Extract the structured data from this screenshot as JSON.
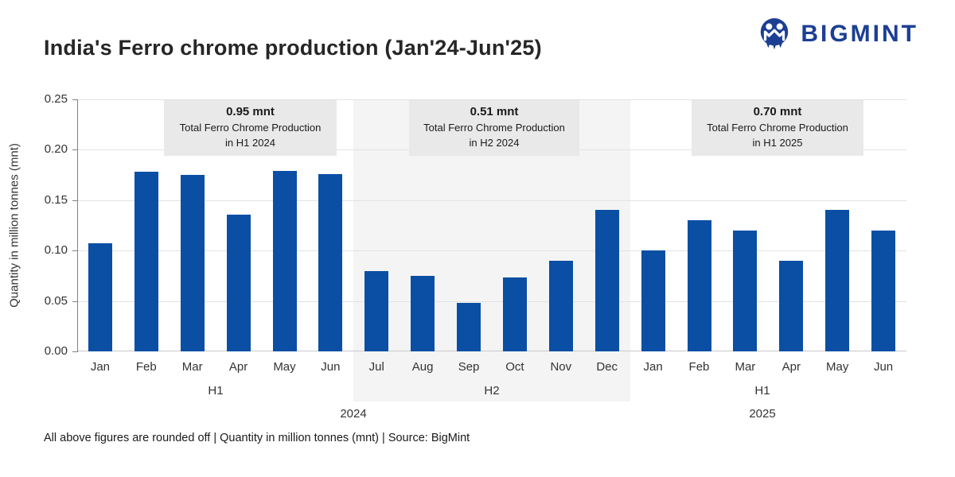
{
  "header": {
    "title": "India's Ferro chrome production (Jan'24-Jun'25)",
    "brand": "BIGMINT"
  },
  "chart_data": {
    "type": "bar",
    "title": "India's Ferro chrome production (Jan'24-Jun'25)",
    "ylabel": "Quantity in million tonnes (mnt)",
    "ylim": [
      0,
      0.25
    ],
    "ytick_step": 0.05,
    "yticks": [
      "0.00",
      "0.05",
      "0.10",
      "0.15",
      "0.20",
      "0.25"
    ],
    "grid": "horizontal",
    "bar_color": "#0a4fa4",
    "shaded_group_index": 1,
    "categories": [
      "Jan",
      "Feb",
      "Mar",
      "Apr",
      "May",
      "Jun",
      "Jul",
      "Aug",
      "Sep",
      "Oct",
      "Nov",
      "Dec",
      "Jan",
      "Feb",
      "Mar",
      "Apr",
      "May",
      "Jun"
    ],
    "values": [
      0.107,
      0.178,
      0.175,
      0.136,
      0.179,
      0.176,
      0.08,
      0.075,
      0.048,
      0.073,
      0.09,
      0.14,
      0.1,
      0.13,
      0.12,
      0.09,
      0.14,
      0.12
    ],
    "half_labels": [
      "H1",
      "H2",
      "H1"
    ],
    "year_labels": [
      "2024",
      "2025"
    ]
  },
  "annotations": [
    {
      "amount": "0.95 mnt",
      "line1": "Total Ferro Chrome Production",
      "line2": "in H1 2024"
    },
    {
      "amount": "0.51 mnt",
      "line1": "Total Ferro Chrome Production",
      "line2": "in H2 2024"
    },
    {
      "amount": "0.70 mnt",
      "line1": "Total Ferro Chrome Production",
      "line2": "in H1 2025"
    }
  ],
  "footer": {
    "text": "All above figures are rounded off | Quantity in million tonnes (mnt) | Source: BigMint"
  }
}
